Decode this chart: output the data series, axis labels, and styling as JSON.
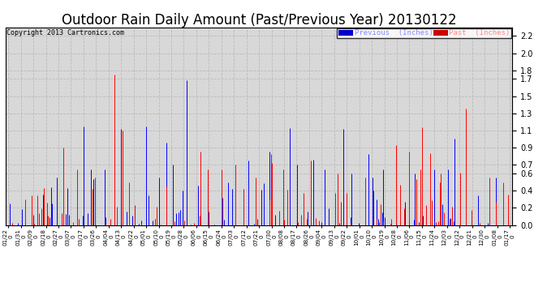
{
  "title": "Outdoor Rain Daily Amount (Past/Previous Year) 20130122",
  "copyright": "Copyright 2013 Cartronics.com",
  "legend_labels": [
    "Previous  (Inches)",
    "Past  (Inches)"
  ],
  "legend_bg_colors": [
    "#0000cc",
    "#cc0000"
  ],
  "legend_text_colors": [
    "#8888ff",
    "#ff8888"
  ],
  "ylim": [
    0.0,
    2.3
  ],
  "yticks": [
    0.0,
    0.2,
    0.4,
    0.6,
    0.7,
    0.9,
    1.1,
    1.3,
    1.5,
    1.7,
    1.8,
    2.0,
    2.2
  ],
  "background_color": "#ffffff",
  "plot_bg_color": "#d8d8d8",
  "grid_color": "#bbbbbb",
  "color_previous": "#0000ff",
  "color_past": "#ff0000",
  "title_fontsize": 12,
  "tick_fontsize": 7,
  "num_points": 366,
  "x_tick_labels": [
    "01/22",
    "01/31",
    "02/09",
    "02/18",
    "02/27",
    "03/07",
    "03/17",
    "03/26",
    "04/04",
    "04/13",
    "04/22",
    "05/01",
    "05/10",
    "05/19",
    "05/28",
    "06/06",
    "06/15",
    "06/24",
    "07/03",
    "07/12",
    "07/21",
    "07/30",
    "08/08",
    "08/17",
    "08/26",
    "09/04",
    "09/13",
    "09/22",
    "10/01",
    "10/10",
    "10/19",
    "10/28",
    "11/06",
    "11/15",
    "11/24",
    "12/03",
    "12/12",
    "12/21",
    "12/30",
    "01/08",
    "01/17"
  ]
}
